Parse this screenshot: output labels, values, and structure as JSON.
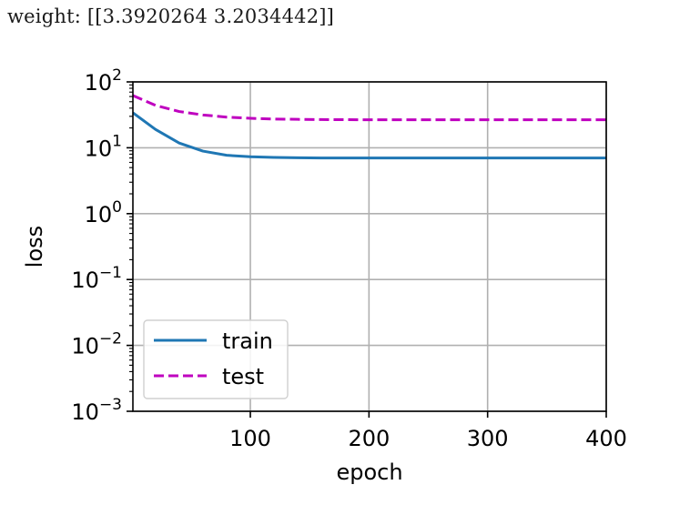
{
  "output_text": "weight: [[3.3920264 3.2034442]]",
  "chart_data": {
    "type": "line",
    "xlabel": "epoch",
    "ylabel": "loss",
    "xlim": [
      1,
      400
    ],
    "ylim": [
      0.001,
      100
    ],
    "yscale": "log",
    "grid": true,
    "legend_position": "lower-left",
    "x_ticks": [
      100,
      200,
      300,
      400
    ],
    "y_ticks": [
      {
        "base": "10",
        "exp": "2",
        "value": 100
      },
      {
        "base": "10",
        "exp": "1",
        "value": 10
      },
      {
        "base": "10",
        "exp": "0",
        "value": 1
      },
      {
        "base": "10",
        "exp": "−1",
        "value": 0.1
      },
      {
        "base": "10",
        "exp": "−2",
        "value": 0.01
      },
      {
        "base": "10",
        "exp": "−3",
        "value": 0.001
      }
    ],
    "series": [
      {
        "name": "train",
        "color": "#1f77b4",
        "style": "solid",
        "x": [
          1,
          20,
          40,
          60,
          80,
          100,
          120,
          140,
          160,
          180,
          200,
          220,
          240,
          260,
          280,
          300,
          320,
          340,
          360,
          380,
          400
        ],
        "y": [
          34,
          19,
          11.8,
          8.9,
          7.7,
          7.3,
          7.15,
          7.05,
          7.0,
          7.0,
          7.0,
          7.0,
          7.0,
          7.0,
          7.0,
          7.0,
          7.0,
          7.0,
          7.0,
          7.0,
          7.0
        ]
      },
      {
        "name": "test",
        "color": "#bf00bf",
        "style": "dashed",
        "x": [
          1,
          20,
          40,
          60,
          80,
          100,
          120,
          140,
          160,
          180,
          200,
          220,
          240,
          260,
          280,
          300,
          320,
          340,
          360,
          380,
          400
        ],
        "y": [
          62,
          44,
          35.5,
          31.5,
          29.2,
          28.0,
          27.3,
          27.0,
          26.8,
          26.7,
          26.6,
          26.6,
          26.6,
          26.6,
          26.6,
          26.6,
          26.6,
          26.6,
          26.6,
          26.6,
          26.6
        ]
      }
    ]
  }
}
